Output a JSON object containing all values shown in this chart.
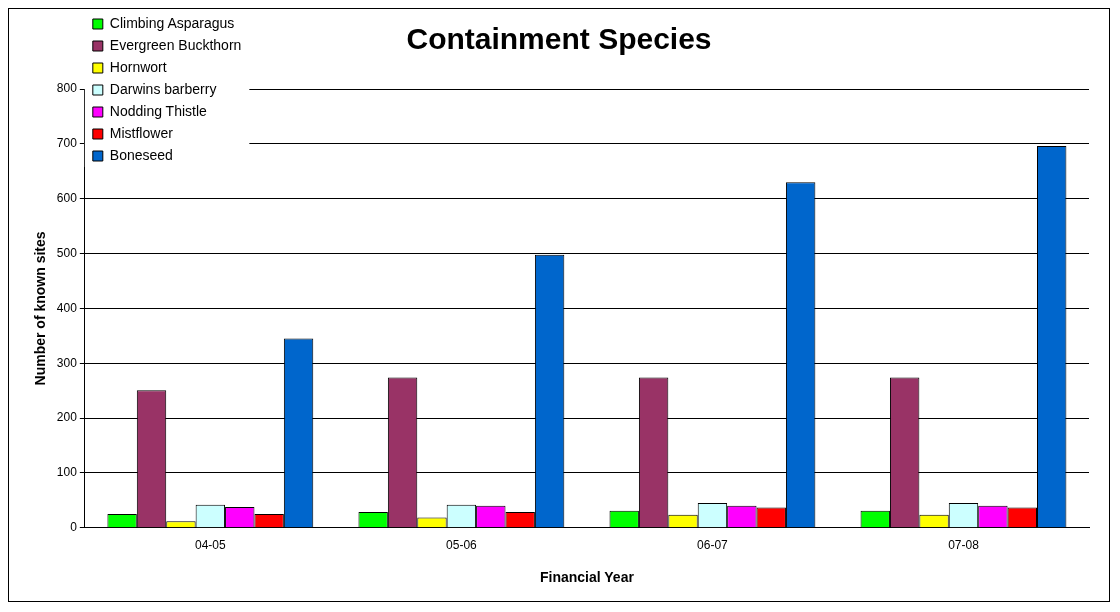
{
  "chart_data": {
    "type": "bar",
    "title": "Containment Species",
    "xlabel": "Financial Year",
    "ylabel": "Number of known sites",
    "categories": [
      "04-05",
      "05-06",
      "06-07",
      "07-08"
    ],
    "series": [
      {
        "name": "Climbing Asparagus",
        "color": "#00ff00",
        "values": [
          25,
          29,
          31,
          31
        ]
      },
      {
        "name": "Evergreen Buckthorn",
        "color": "#993366",
        "values": [
          251,
          274,
          274,
          274
        ]
      },
      {
        "name": "Hornwort",
        "color": "#ffff00",
        "values": [
          12,
          19,
          24,
          24
        ]
      },
      {
        "name": "Darwins barberry",
        "color": "#ccffff",
        "values": [
          42,
          42,
          45,
          45
        ]
      },
      {
        "name": "Nodding Thistle",
        "color": "#ff00ff",
        "values": [
          38,
          40,
          40,
          40
        ]
      },
      {
        "name": "Mistflower",
        "color": "#ff0000",
        "values": [
          25,
          29,
          37,
          37
        ]
      },
      {
        "name": "Boneseed",
        "color": "#0066cc",
        "values": [
          345,
          498,
          630,
          696
        ]
      }
    ],
    "ylim": [
      0,
      800
    ],
    "yticks": [
      0,
      100,
      200,
      300,
      400,
      500,
      600,
      700,
      800
    ],
    "grid": "y",
    "legend": "top left"
  }
}
